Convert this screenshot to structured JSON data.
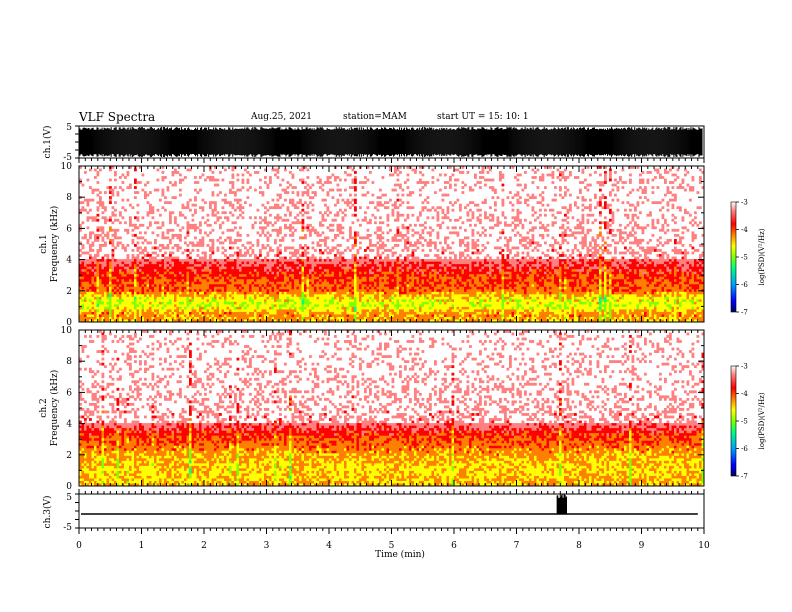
{
  "header": {
    "title": "VLF Spectra",
    "date": "Aug.25, 2021",
    "station": "station=MAM",
    "start": "start  UT  =   15: 10: 1"
  },
  "chart_data": [
    {
      "type": "line",
      "id": "ch1-waveform",
      "ylabel": "ch.1(V)",
      "ylim": [
        -5,
        5
      ],
      "yticks": [
        "5",
        "-5"
      ],
      "xlim": [
        0,
        10
      ],
      "description_of_signal": "dense broadband noise filling nearly full range"
    },
    {
      "type": "heatmap",
      "id": "ch1-spectrogram",
      "ylabel": "ch.1\nFrequency  (kHz)",
      "ylabel_lines": [
        "ch.1",
        "Frequency  (kHz)"
      ],
      "ylim": [
        0,
        10
      ],
      "yticks": [
        "0",
        "2",
        "4",
        "6",
        "8",
        "10"
      ],
      "xlim": [
        0,
        10
      ],
      "colorbar": {
        "label": "log(PSD)(V²/Hz)",
        "range": [
          -7,
          -3
        ],
        "ticks": [
          "-3",
          "-4",
          "-5",
          "-6",
          "-7"
        ]
      },
      "band_profile_kHz": [
        {
          "f": 0.0,
          "level": -4.6
        },
        {
          "f": 0.5,
          "level": -4.4
        },
        {
          "f": 1.0,
          "level": -4.9
        },
        {
          "f": 1.5,
          "level": -4.8
        },
        {
          "f": 2.0,
          "level": -4.3
        },
        {
          "f": 3.0,
          "level": -4.1
        },
        {
          "f": 3.5,
          "level": -3.9
        },
        {
          "f": 4.0,
          "level": -3.6
        },
        {
          "f": 6.0,
          "level": -3.4
        },
        {
          "f": 10.0,
          "level": -3.2
        }
      ]
    },
    {
      "type": "heatmap",
      "id": "ch2-spectrogram",
      "ylabel": "ch.2\nFrequency  (kHz)",
      "ylabel_lines": [
        "ch.2",
        "Frequency  (kHz)"
      ],
      "ylim": [
        0,
        10
      ],
      "yticks": [
        "0",
        "2",
        "4",
        "6",
        "8",
        "10"
      ],
      "xlim": [
        0,
        10
      ],
      "colorbar": {
        "label": "log(PSD)(V²/Hz)",
        "range": [
          -7,
          -3
        ],
        "ticks": [
          "-3",
          "-4",
          "-5",
          "-6",
          "-7"
        ]
      },
      "band_profile_kHz": [
        {
          "f": 0.0,
          "level": -4.5
        },
        {
          "f": 0.5,
          "level": -4.6
        },
        {
          "f": 1.0,
          "level": -4.7
        },
        {
          "f": 2.0,
          "level": -4.5
        },
        {
          "f": 3.0,
          "level": -4.2
        },
        {
          "f": 3.5,
          "level": -4.0
        },
        {
          "f": 4.0,
          "level": -3.6
        },
        {
          "f": 6.0,
          "level": -3.4
        },
        {
          "f": 10.0,
          "level": -3.2
        }
      ]
    },
    {
      "type": "line",
      "id": "ch3-waveform",
      "ylabel": "ch.3(V)",
      "ylim": [
        -5,
        5
      ],
      "yticks": [
        "5",
        "-5"
      ],
      "xlim": [
        0,
        10
      ],
      "xlabel": "Time  (min)",
      "xticks": [
        "0",
        "1",
        "2",
        "3",
        "4",
        "5",
        "6",
        "7",
        "8",
        "9",
        "10"
      ],
      "baseline_v": 0,
      "burst": {
        "start_min": 7.65,
        "end_min": 7.8,
        "peak_v": 5
      }
    }
  ],
  "colors": {
    "background": "#ffffff",
    "axis": "#000000",
    "colormap": [
      "#000066",
      "#0000ff",
      "#00a0ff",
      "#00ff80",
      "#80ff00",
      "#ffff00",
      "#ff8000",
      "#ff0000",
      "#ff8080",
      "#ffffff"
    ]
  }
}
